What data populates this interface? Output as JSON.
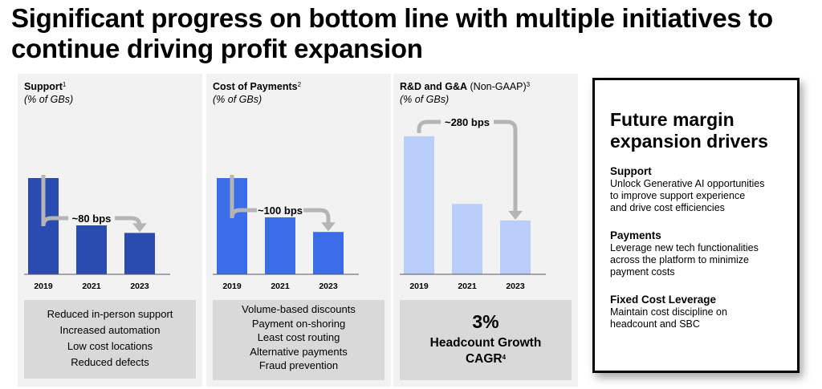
{
  "title": "Significant progress on bottom line with multiple initiatives to continue driving profit expansion",
  "colors": {
    "support": "#2a4bb0",
    "payments": "#3c6de8",
    "rnd": "#b9cefb",
    "arrow": "#b5b5b5",
    "panel": "#f2f2f2",
    "notes": "#d9d9d9"
  },
  "panels": [
    {
      "name": "Support",
      "sup": "1",
      "unit": "(% of GBs)",
      "notes": [
        "Reduced in-person support",
        "Increased automation",
        "Low cost locations",
        "Reduced defects"
      ]
    },
    {
      "name": "Cost of Payments",
      "sup": "2",
      "unit": "(% of GBs)",
      "notes": [
        "Volume-based discounts",
        "Payment on-shoring",
        "Least cost routing",
        "Alternative payments",
        "Fraud prevention"
      ]
    },
    {
      "name": "R&D and G&A",
      "qualifier": "(Non-GAAP)",
      "sup": "3",
      "unit": "(% of GBs)",
      "stat": {
        "value": "3%",
        "label1": "Headcount Growth",
        "label2": "CAGR",
        "sup": "4"
      }
    }
  ],
  "chart_data": [
    {
      "type": "bar",
      "title": "Support",
      "categories": [
        "2019",
        "2021",
        "2023"
      ],
      "values": [
        1.0,
        0.64,
        0.43
      ],
      "ylim": [
        0,
        1.5
      ],
      "annotation": "~80 bps"
    },
    {
      "type": "bar",
      "title": "Cost of Payments",
      "categories": [
        "2019",
        "2021",
        "2023"
      ],
      "values": [
        1.0,
        0.6,
        0.44
      ],
      "ylim": [
        0,
        1.5
      ],
      "annotation": "~100 bps"
    },
    {
      "type": "bar",
      "title": "R&D and G&A (Non-GAAP)",
      "categories": [
        "2019",
        "2021",
        "2023"
      ],
      "values": [
        1.0,
        0.51,
        0.39
      ],
      "ylim": [
        0,
        1.0
      ],
      "annotation": "~280 bps"
    }
  ],
  "drivers": {
    "title": "Future margin expansion drivers",
    "items": [
      {
        "heading": "Support",
        "text": [
          "Unlock Generative AI opportunities",
          "to improve support experience",
          "and drive cost efficiencies"
        ]
      },
      {
        "heading": "Payments",
        "text": [
          "Leverage new tech functionalities",
          "across the platform to minimize",
          "payment costs"
        ]
      },
      {
        "heading": "Fixed Cost Leverage",
        "text": [
          "Maintain cost discipline on",
          "headcount and SBC"
        ]
      }
    ]
  }
}
